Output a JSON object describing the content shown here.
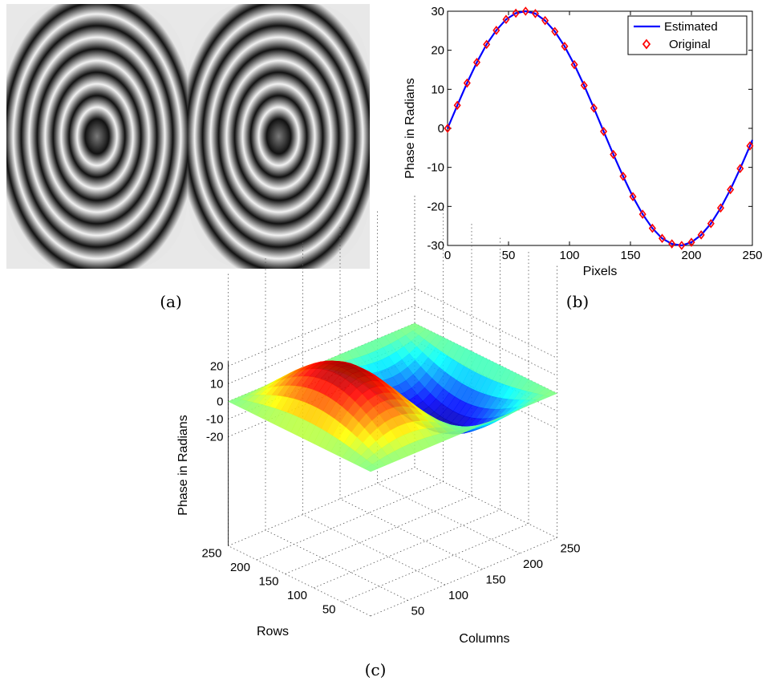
{
  "captions": {
    "a": "(a)",
    "b": "(b)",
    "c": "(c)"
  },
  "fringe_panel": {
    "type": "image",
    "description_level": 0
  },
  "chart_data": [
    {
      "panel": "b",
      "type": "line",
      "xlabel": "Pixels",
      "ylabel": "Phase in Radians",
      "xlim": [
        0,
        250
      ],
      "ylim": [
        -30,
        30
      ],
      "xticks": [
        0,
        50,
        100,
        150,
        200,
        250
      ],
      "yticks": [
        -30,
        -20,
        -10,
        0,
        10,
        20,
        30
      ],
      "grid": false,
      "legend_position": "top-right",
      "series": [
        {
          "name": "Estimated",
          "color": "#0000ff",
          "style": "solid",
          "x": [
            0,
            8,
            16,
            24,
            32,
            40,
            48,
            56,
            64,
            72,
            80,
            88,
            96,
            104,
            112,
            120,
            128,
            136,
            144,
            152,
            160,
            168,
            176,
            184,
            192,
            200,
            208,
            216,
            224,
            232,
            240,
            248,
            250
          ],
          "y": [
            0,
            5.9,
            11.6,
            16.9,
            21.5,
            25.1,
            27.9,
            29.5,
            30.0,
            29.4,
            27.6,
            24.8,
            21.0,
            16.3,
            11.0,
            5.2,
            -0.8,
            -6.7,
            -12.3,
            -17.5,
            -22.0,
            -25.6,
            -28.2,
            -29.6,
            -30.0,
            -29.2,
            -27.3,
            -24.4,
            -20.4,
            -15.7,
            -10.3,
            -4.5,
            -3.0
          ]
        },
        {
          "name": "Original",
          "color": "#ff0000",
          "style": "diamond-marker",
          "x": [
            0,
            8,
            16,
            24,
            32,
            40,
            48,
            56,
            64,
            72,
            80,
            88,
            96,
            104,
            112,
            120,
            128,
            136,
            144,
            152,
            160,
            168,
            176,
            184,
            192,
            200,
            208,
            216,
            224,
            232,
            240,
            248
          ],
          "y": [
            0,
            5.9,
            11.6,
            16.9,
            21.5,
            25.1,
            27.9,
            29.5,
            30.0,
            29.4,
            27.6,
            24.8,
            21.0,
            16.3,
            11.0,
            5.2,
            -0.8,
            -6.7,
            -12.3,
            -17.5,
            -22.0,
            -25.6,
            -28.2,
            -29.6,
            -30.0,
            -29.2,
            -27.3,
            -24.4,
            -20.4,
            -15.7,
            -10.3,
            -4.5
          ]
        }
      ]
    },
    {
      "panel": "c",
      "type": "surface",
      "xlabel": "Columns",
      "ylabel": "Rows",
      "zlabel": "Phase in Radians",
      "xticks": [
        50,
        100,
        150,
        200,
        250
      ],
      "yticks": [
        50,
        100,
        150,
        200,
        250
      ],
      "zticks": [
        -20,
        -10,
        0,
        10,
        20
      ],
      "grid": true,
      "colormap": "jet"
    }
  ]
}
